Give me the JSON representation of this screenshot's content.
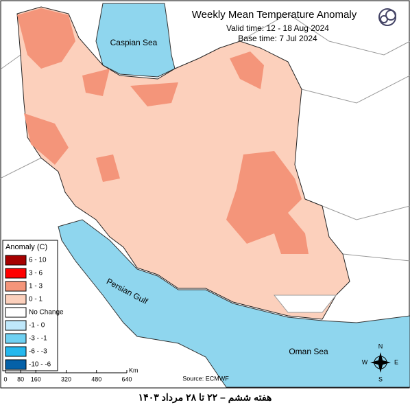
{
  "title": "Weekly Mean Temperature Anomaly",
  "valid_time": "Valid time: 12 - 18 Aug 2024",
  "base_time": "Base time: 7 Jul 2024",
  "labels": {
    "caspian": "Caspian Sea",
    "gulf": "Persian Gulf",
    "oman": "Oman Sea"
  },
  "legend": {
    "title": "Anomaly (C)",
    "items": [
      {
        "label": "6 - 10",
        "color": "#a50000"
      },
      {
        "label": "3 - 6",
        "color": "#ff0000"
      },
      {
        "label": "1 - 3",
        "color": "#f4957a"
      },
      {
        "label": "0 - 1",
        "color": "#fcd0bc"
      },
      {
        "label": "No Change",
        "color": "#ffffff"
      },
      {
        "label": "-1 - 0",
        "color": "#bfe8fb"
      },
      {
        "label": "-3 - -1",
        "color": "#6fd1f2"
      },
      {
        "label": "-6 - -3",
        "color": "#25b8ee"
      },
      {
        "label": "-10 - -6",
        "color": "#0561a8"
      }
    ]
  },
  "scale": {
    "ticks": [
      0,
      80,
      160,
      320,
      480,
      640
    ],
    "unit": "Km"
  },
  "source": "Source: ECMWF",
  "compass": {
    "n": "N",
    "e": "E",
    "s": "S",
    "w": "W"
  },
  "caption": "هفته ششم – ۲۲ تا ۲۸ مرداد ۱۴۰۳"
}
